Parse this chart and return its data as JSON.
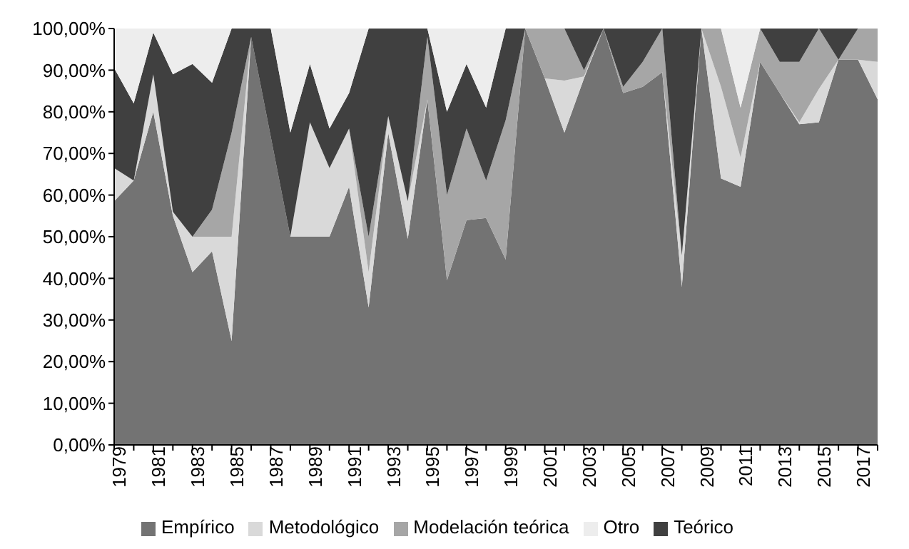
{
  "chart_data": {
    "type": "area",
    "stacked": true,
    "categories": [
      "1979",
      null,
      "1981",
      null,
      "1983",
      null,
      "1985",
      null,
      "1987",
      null,
      "1989",
      null,
      "1991",
      null,
      "1993",
      null,
      "1995",
      null,
      "1997",
      null,
      "1999",
      null,
      "2001",
      null,
      "2003",
      null,
      "2005",
      null,
      "2007",
      null,
      "2009",
      null,
      "2011",
      null,
      "2013",
      null,
      "2015",
      null,
      "2017",
      null
    ],
    "series": [
      {
        "name": "Empírico",
        "color": "#737373",
        "values": [
          58.5,
          63.5,
          80,
          55,
          41.5,
          46.5,
          25,
          98,
          74,
          50,
          50,
          50,
          62,
          33,
          75,
          49.5,
          83,
          39.5,
          54,
          54.5,
          44.5,
          100,
          88,
          75,
          88,
          100,
          84.5,
          86,
          89.5,
          38,
          100,
          64,
          62,
          92,
          84.5,
          77,
          77.5,
          92.5,
          92.5,
          83
        ]
      },
      {
        "name": "Metodológico",
        "color": "#d9d9d9",
        "values": [
          8,
          0,
          9,
          1,
          8.5,
          3.5,
          25,
          0,
          0,
          0,
          27.5,
          16.5,
          14,
          8.5,
          4,
          9,
          0,
          0,
          0,
          0,
          0,
          0,
          0,
          12.5,
          0.5,
          0,
          0,
          0,
          0,
          7.5,
          0,
          22,
          7,
          0,
          0,
          0.5,
          8,
          0,
          0,
          9
        ]
      },
      {
        "name": "Modelación teórica",
        "color": "#a6a6a6",
        "values": [
          0,
          0,
          0,
          0,
          0,
          6.5,
          25,
          0,
          0,
          0,
          0,
          0,
          0,
          8.5,
          0,
          0,
          15,
          20.5,
          22,
          9,
          33.5,
          0,
          12,
          12.5,
          1.5,
          0,
          1.5,
          6,
          10.5,
          0,
          0,
          14,
          12,
          8,
          7.5,
          14.5,
          14.5,
          0,
          7.5,
          8
        ]
      },
      {
        "name": "Teórico",
        "color": "#404040",
        "values": [
          24,
          18.5,
          10,
          33,
          41.5,
          30.5,
          25,
          2,
          26,
          25,
          14,
          9.5,
          8.5,
          50,
          21,
          41.5,
          2,
          20,
          15.5,
          17.5,
          22,
          0,
          0,
          0,
          10,
          0,
          14,
          8,
          0,
          54.5,
          0,
          0,
          0,
          0,
          8,
          8,
          0,
          7.5,
          0,
          0
        ]
      },
      {
        "name": "Otro",
        "color": "#ededed",
        "values": [
          9.5,
          18,
          1,
          11,
          8.5,
          13,
          0,
          0,
          0,
          25,
          8.5,
          24,
          15.5,
          0,
          0,
          0,
          0,
          20,
          8.5,
          19,
          0,
          0,
          0,
          0,
          0,
          0,
          0,
          0,
          0,
          0,
          0,
          0,
          19,
          0,
          0,
          0,
          0,
          0,
          0,
          0
        ]
      }
    ],
    "ylim": [
      0,
      100
    ],
    "yticks": [
      {
        "value": 0,
        "label": "0,00%"
      },
      {
        "value": 10,
        "label": "10,00%"
      },
      {
        "value": 20,
        "label": "20,00%"
      },
      {
        "value": 30,
        "label": "30,00%"
      },
      {
        "value": 40,
        "label": "40,00%"
      },
      {
        "value": 50,
        "label": "50,00%"
      },
      {
        "value": 60,
        "label": "60,00%"
      },
      {
        "value": 70,
        "label": "70,00%"
      },
      {
        "value": 80,
        "label": "80,00%"
      },
      {
        "value": 90,
        "label": "90,00%"
      },
      {
        "value": 100,
        "label": "100,00%"
      }
    ],
    "grid": false,
    "legend": "bottom"
  }
}
